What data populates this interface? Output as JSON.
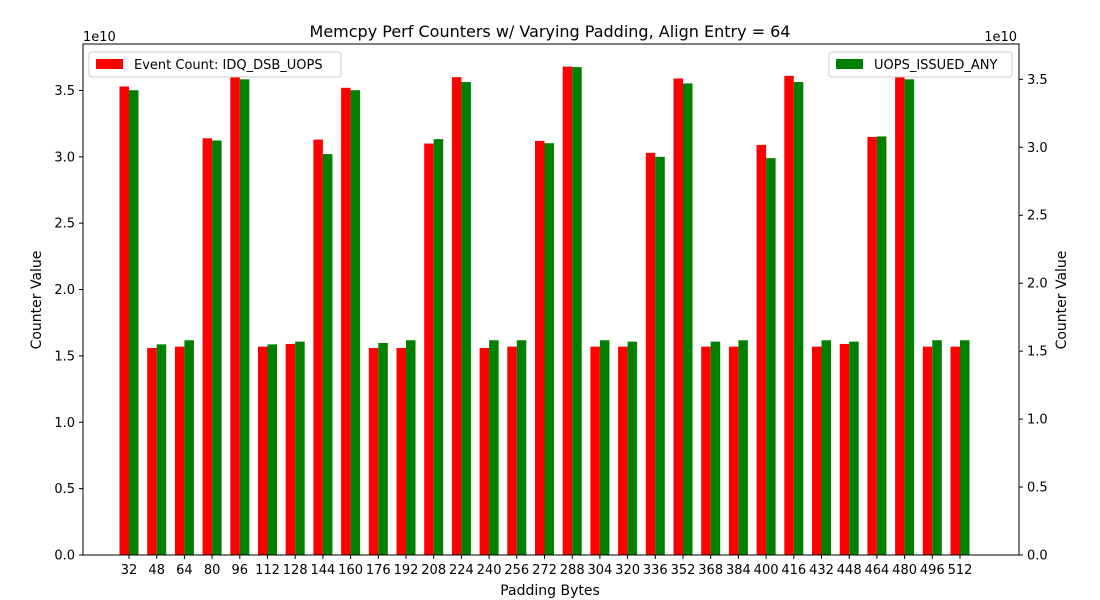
{
  "chart_data": {
    "type": "bar",
    "title": "Memcpy Perf Counters w/ Varying Padding, Align Entry = 64",
    "xlabel": "Padding Bytes",
    "ylabel_left": "Counter Value",
    "ylabel_right": "Counter Value",
    "left_offset_label": "1e10",
    "right_offset_label": "1e10",
    "categories": [
      "32",
      "48",
      "64",
      "80",
      "96",
      "112",
      "128",
      "144",
      "160",
      "176",
      "192",
      "208",
      "224",
      "240",
      "256",
      "272",
      "288",
      "304",
      "320",
      "336",
      "352",
      "368",
      "384",
      "400",
      "416",
      "432",
      "448",
      "464",
      "480",
      "496",
      "512"
    ],
    "left_axis": {
      "ylim": [
        0,
        3.85
      ],
      "ticks": [
        0.0,
        0.5,
        1.0,
        1.5,
        2.0,
        2.5,
        3.0,
        3.5
      ],
      "tick_labels": [
        "0.0",
        "0.5",
        "1.0",
        "1.5",
        "2.0",
        "2.5",
        "3.0",
        "3.5"
      ]
    },
    "right_axis": {
      "ylim": [
        0,
        3.76
      ],
      "ticks": [
        0.0,
        0.5,
        1.0,
        1.5,
        2.0,
        2.5,
        3.0,
        3.5
      ],
      "tick_labels": [
        "0.0",
        "0.5",
        "1.0",
        "1.5",
        "2.0",
        "2.5",
        "3.0",
        "3.5"
      ]
    },
    "series": [
      {
        "name": "Event Count: IDQ_DSB_UOPS",
        "axis": "left",
        "color": "#ff0000",
        "values": [
          3.53,
          1.56,
          1.57,
          3.14,
          3.61,
          1.57,
          1.59,
          3.13,
          3.52,
          1.56,
          1.56,
          3.1,
          3.6,
          1.56,
          1.57,
          3.12,
          3.68,
          1.57,
          1.57,
          3.03,
          3.59,
          1.57,
          1.57,
          3.09,
          3.61,
          1.57,
          1.59,
          3.15,
          3.61,
          1.57,
          1.57
        ]
      },
      {
        "name": "UOPS_ISSUED_ANY",
        "axis": "right",
        "color": "#008000",
        "values": [
          3.42,
          1.55,
          1.58,
          3.05,
          3.5,
          1.55,
          1.57,
          2.95,
          3.42,
          1.56,
          1.58,
          3.06,
          3.48,
          1.58,
          1.58,
          3.03,
          3.59,
          1.58,
          1.57,
          2.93,
          3.47,
          1.57,
          1.58,
          2.92,
          3.48,
          1.58,
          1.57,
          3.08,
          3.5,
          1.58,
          1.58
        ]
      }
    ],
    "grid": false,
    "legend_left_placement": "upper-left",
    "legend_right_placement": "upper-right"
  }
}
